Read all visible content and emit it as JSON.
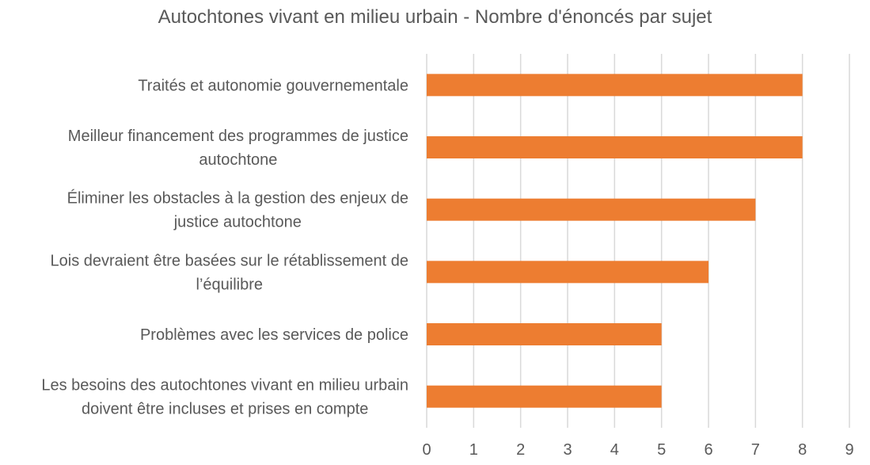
{
  "chart_data": {
    "type": "bar",
    "orientation": "horizontal",
    "title": "Autochtones vivant en milieu urbain - Nombre d'énoncés par sujet",
    "xlabel": "",
    "ylabel": "",
    "xlim": [
      0,
      9
    ],
    "ticks": [
      0,
      1,
      2,
      3,
      4,
      5,
      6,
      7,
      8,
      9
    ],
    "grid": true,
    "legend": "none",
    "bar_color": "#ED7D31",
    "categories": [
      [
        "Traités et autonomie gouvernementale"
      ],
      [
        "Meilleur financement des programmes de justice",
        "autochtone"
      ],
      [
        "Éliminer les obstacles à la gestion des enjeux de",
        "justice autochtone"
      ],
      [
        "Lois devraient être basées sur le rétablissement de",
        "l’équilibre"
      ],
      [
        "Problèmes avec les services de police"
      ],
      [
        "Les besoins des autochtones vivant en milieu urbain",
        "doivent être incluses et prises en compte"
      ]
    ],
    "values": [
      8,
      8,
      7,
      6,
      5,
      5
    ]
  }
}
